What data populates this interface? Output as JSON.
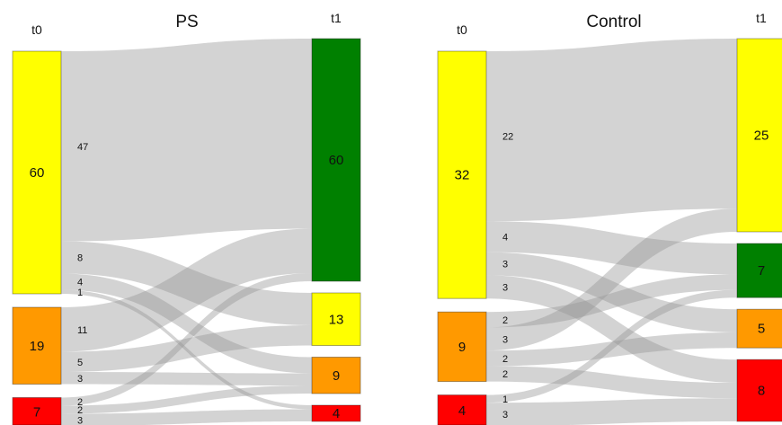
{
  "colors": {
    "green": "#008000",
    "yellow": "#ffff00",
    "orange": "#ff9900",
    "red": "#ff0000",
    "flow": "#999999"
  },
  "chart_data": [
    {
      "type": "sankey",
      "title": "PS",
      "time_labels": [
        "t0",
        "t1"
      ],
      "sources": [
        {
          "id": "yellow",
          "label": "60",
          "color": "yellow"
        },
        {
          "id": "orange",
          "label": "19",
          "color": "orange"
        },
        {
          "id": "red",
          "label": "7",
          "color": "red"
        }
      ],
      "targets": [
        {
          "id": "green",
          "label": "60",
          "color": "green"
        },
        {
          "id": "yellow",
          "label": "13",
          "color": "yellow"
        },
        {
          "id": "orange",
          "label": "9",
          "color": "orange"
        },
        {
          "id": "red",
          "label": "4",
          "color": "red"
        }
      ],
      "flows": [
        {
          "from": "yellow",
          "to": "green",
          "value": 47,
          "label": "47"
        },
        {
          "from": "yellow",
          "to": "yellow",
          "value": 8,
          "label": "8"
        },
        {
          "from": "yellow",
          "to": "orange",
          "value": 4,
          "label": "4"
        },
        {
          "from": "yellow",
          "to": "red",
          "value": 1,
          "label": "1"
        },
        {
          "from": "orange",
          "to": "green",
          "value": 11,
          "label": "11"
        },
        {
          "from": "orange",
          "to": "yellow",
          "value": 5,
          "label": "5"
        },
        {
          "from": "orange",
          "to": "orange",
          "value": 3,
          "label": "3"
        },
        {
          "from": "red",
          "to": "green",
          "value": 2,
          "label": "2"
        },
        {
          "from": "red",
          "to": "orange",
          "value": 2,
          "label": "2"
        },
        {
          "from": "red",
          "to": "red",
          "value": 3,
          "label": "3"
        }
      ]
    },
    {
      "type": "sankey",
      "title": "Control",
      "time_labels": [
        "t0",
        "t1"
      ],
      "sources": [
        {
          "id": "yellow",
          "label": "32",
          "color": "yellow"
        },
        {
          "id": "orange",
          "label": "9",
          "color": "orange"
        },
        {
          "id": "red",
          "label": "4",
          "color": "red"
        }
      ],
      "targets": [
        {
          "id": "yellow",
          "label": "25",
          "color": "yellow"
        },
        {
          "id": "green",
          "label": "7",
          "color": "green"
        },
        {
          "id": "orange",
          "label": "5",
          "color": "orange"
        },
        {
          "id": "red",
          "label": "8",
          "color": "red"
        }
      ],
      "flows": [
        {
          "from": "yellow",
          "to": "yellow",
          "value": 22,
          "label": "22"
        },
        {
          "from": "yellow",
          "to": "green",
          "value": 4,
          "label": "4"
        },
        {
          "from": "yellow",
          "to": "orange",
          "value": 3,
          "label": "3"
        },
        {
          "from": "yellow",
          "to": "red",
          "value": 3,
          "label": "3"
        },
        {
          "from": "orange",
          "to": "green",
          "value": 2,
          "label": "2"
        },
        {
          "from": "orange",
          "to": "yellow",
          "value": 3,
          "label": "3"
        },
        {
          "from": "orange",
          "to": "orange",
          "value": 2,
          "label": "2"
        },
        {
          "from": "orange",
          "to": "red",
          "value": 2,
          "label": "2"
        },
        {
          "from": "red",
          "to": "green",
          "value": 1,
          "label": "1"
        },
        {
          "from": "red",
          "to": "red",
          "value": 3,
          "label": "3"
        }
      ]
    }
  ]
}
